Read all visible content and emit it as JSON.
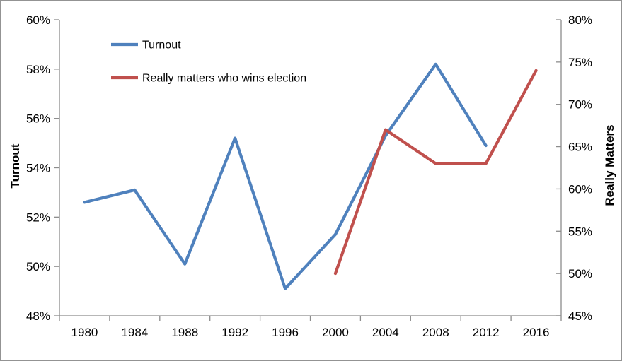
{
  "chart_data": {
    "type": "line",
    "title": "",
    "categories": [
      "1980",
      "1984",
      "1988",
      "1992",
      "1996",
      "2000",
      "2004",
      "2008",
      "2012",
      "2016"
    ],
    "series": [
      {
        "id": "turnout",
        "name": "Turnout",
        "axis": "left",
        "color": "#4F81BD",
        "values": [
          52.6,
          53.1,
          50.1,
          55.2,
          49.1,
          51.3,
          55.3,
          58.2,
          54.9,
          null
        ]
      },
      {
        "id": "really-matters",
        "name": "Really matters who wins election",
        "axis": "right",
        "color": "#C0504D",
        "values": [
          null,
          null,
          null,
          null,
          null,
          50,
          67,
          63,
          63,
          74
        ]
      }
    ],
    "left_axis": {
      "label": "Turnout",
      "min": 48,
      "max": 60,
      "step": 2,
      "ticks": [
        "60%",
        "58%",
        "56%",
        "54%",
        "52%",
        "50%",
        "48%"
      ]
    },
    "right_axis": {
      "label": "Really Matters",
      "min": 45,
      "max": 80,
      "step": 5,
      "ticks": [
        "80%",
        "75%",
        "70%",
        "65%",
        "60%",
        "55%",
        "50%",
        "45%"
      ]
    },
    "x_axis": {
      "label": ""
    },
    "legend_position": "top-left-inside",
    "grid": false,
    "colors": {
      "axis_line": "#8C8C8C",
      "text": "#000000",
      "border": "#939393",
      "background": "#FFFFFF"
    }
  }
}
